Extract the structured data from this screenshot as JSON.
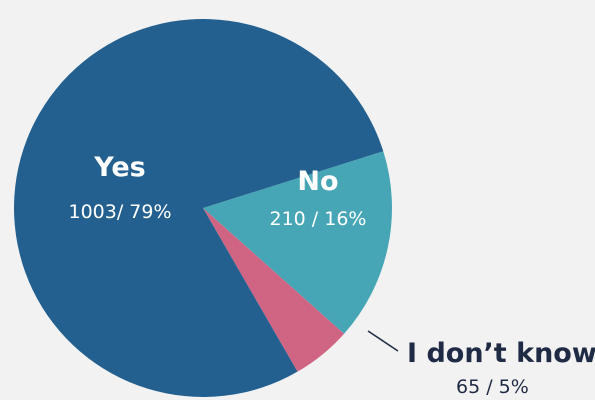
{
  "chart_data": {
    "type": "pie",
    "slices": [
      {
        "label": "Yes",
        "value": 1003,
        "value_text": "1003/ 79%",
        "percent": 79,
        "color": "#23608f"
      },
      {
        "label": "No",
        "value": 210,
        "value_text": "210 / 16%",
        "percent": 16,
        "color": "#47a6b6"
      },
      {
        "label": "I don’t know",
        "value": 65,
        "value_text": "65 / 5%",
        "percent": 5,
        "color": "#d06583"
      }
    ],
    "legend": "none",
    "grid": false
  }
}
